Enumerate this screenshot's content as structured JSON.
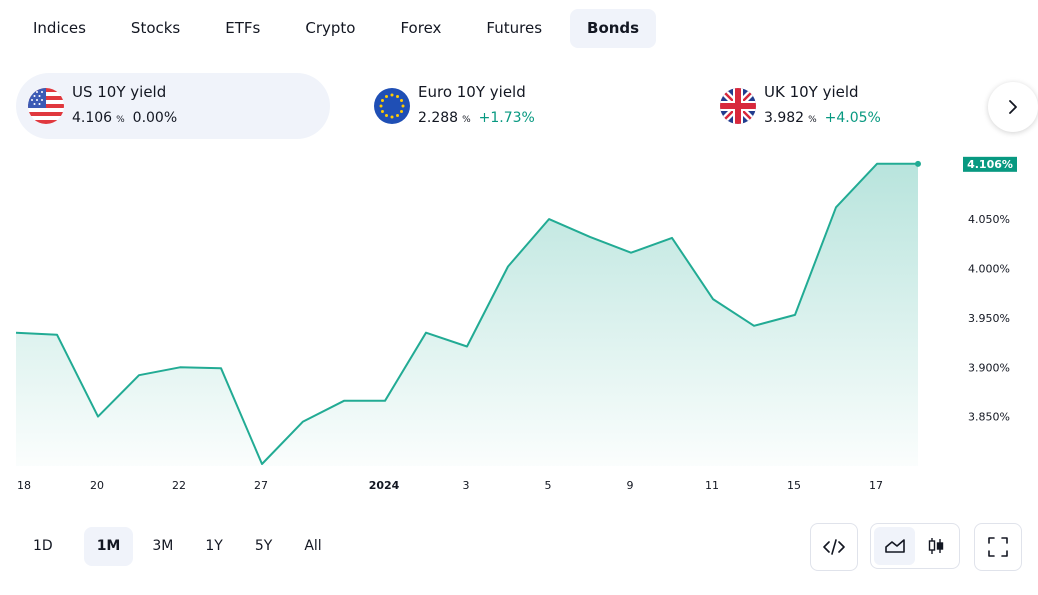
{
  "tabs": [
    "Indices",
    "Stocks",
    "ETFs",
    "Crypto",
    "Forex",
    "Futures",
    "Bonds"
  ],
  "active_tab": "Bonds",
  "tickers": [
    {
      "name": "US 10Y yield",
      "value": "4.106",
      "unit": "%",
      "change": "0.00%",
      "change_positive": false,
      "flag": "us-flag-icon"
    },
    {
      "name": "Euro 10Y yield",
      "value": "2.288",
      "unit": "%",
      "change": "+1.73%",
      "change_positive": true,
      "flag": "eu-flag-icon"
    },
    {
      "name": "UK 10Y yield",
      "value": "3.982",
      "unit": "%",
      "change": "+4.05%",
      "change_positive": true,
      "flag": "uk-flag-icon"
    }
  ],
  "ranges": [
    "1D",
    "1M",
    "3M",
    "1Y",
    "5Y",
    "All"
  ],
  "active_range": "1M",
  "colors": {
    "accent": "#089981",
    "line": "#22ab94",
    "text": "#131722",
    "muted_bg": "#f0f3fa"
  },
  "chart_data": {
    "type": "area",
    "x_tick_labels": [
      "18",
      "20",
      "22",
      "27",
      "2024",
      "3",
      "5",
      "9",
      "11",
      "15",
      "17"
    ],
    "y_tick_labels": [
      "4.050%",
      "4.000%",
      "3.950%",
      "3.900%",
      "3.850%"
    ],
    "y_ticks": [
      4.05,
      4.0,
      3.95,
      3.9,
      3.85
    ],
    "ylim": [
      3.8,
      4.12
    ],
    "last_value_label": "4.106%",
    "series": [
      {
        "values": [
          3.935,
          3.933,
          3.85,
          3.892,
          3.9,
          3.899,
          3.802,
          3.845,
          3.866,
          3.866,
          3.935,
          3.921,
          4.002,
          4.05,
          4.032,
          4.016,
          4.031,
          3.969,
          3.942,
          3.953,
          4.062,
          4.106,
          4.106
        ]
      }
    ]
  }
}
